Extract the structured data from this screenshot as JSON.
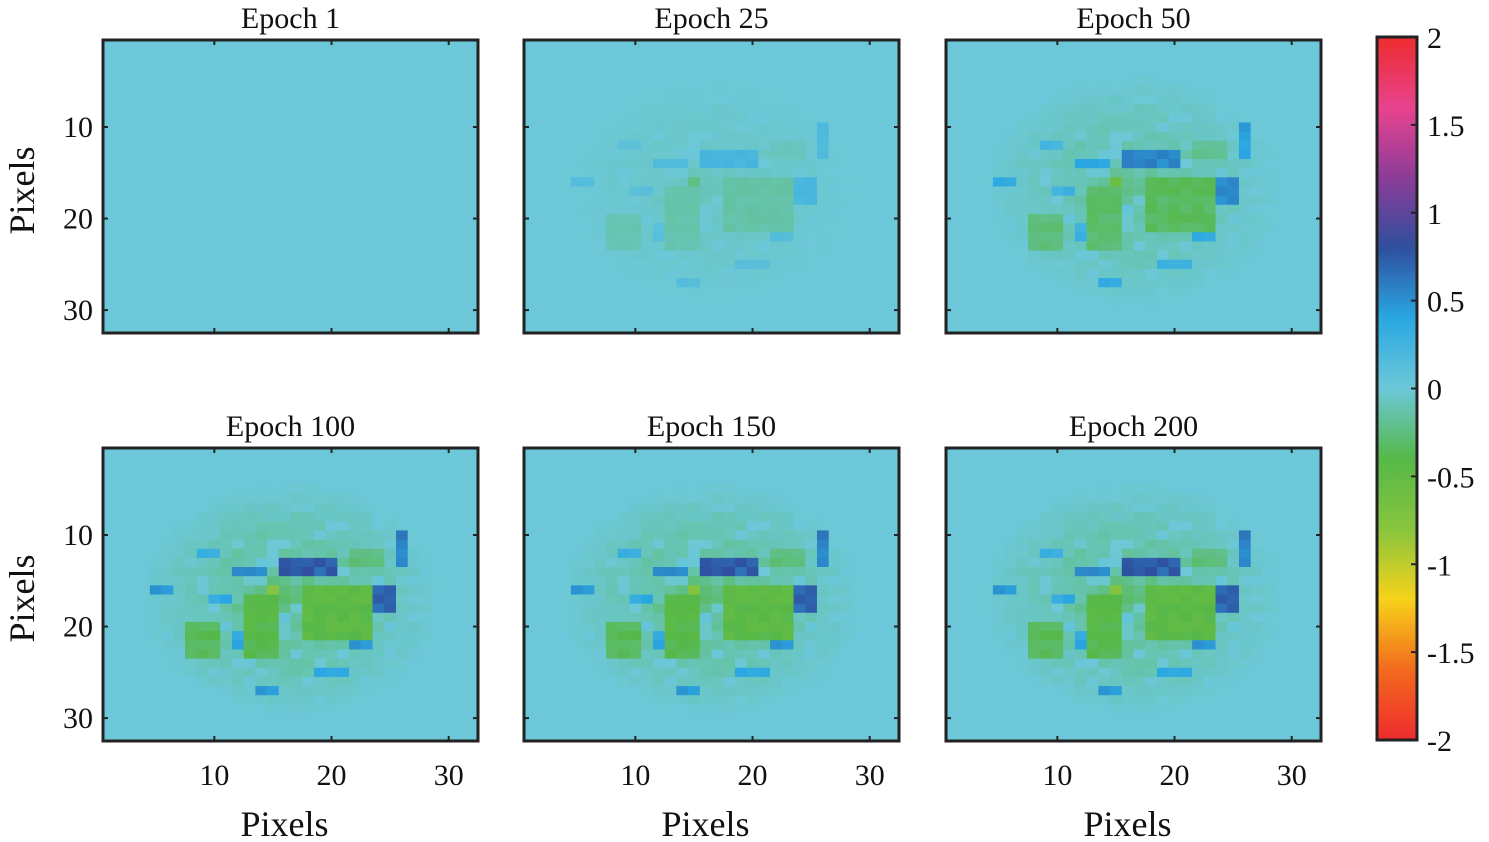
{
  "chart_data": {
    "type": "heatmap",
    "grid_size": 32,
    "xlabel": "Pixels",
    "ylabel": "Pixels",
    "xlim": [
      0.5,
      32.5
    ],
    "ylim": [
      0.5,
      32.5
    ],
    "x_ticks": [
      10,
      20,
      30
    ],
    "y_ticks": [
      10,
      20,
      30
    ],
    "colorbar": {
      "min": -2,
      "max": 2,
      "ticks": [
        "2",
        "1.5",
        "1",
        "0.5",
        "0",
        "-0.5",
        "-1",
        "-1.5",
        "-2"
      ],
      "colors": [
        "#ee2b2e",
        "#f26a1d",
        "#f7d21a",
        "#88c53d",
        "#56b848",
        "#6cc8d8",
        "#2aa7e2",
        "#2f4f9e",
        "#8c3c98",
        "#e8438e",
        "#ee2b2e"
      ]
    },
    "panels": [
      {
        "title": "Epoch 1",
        "epoch": 1,
        "strength": 0.0
      },
      {
        "title": "Epoch 25",
        "epoch": 25,
        "strength": 0.3
      },
      {
        "title": "Epoch 50",
        "epoch": 50,
        "strength": 0.75
      },
      {
        "title": "Epoch 100",
        "epoch": 100,
        "strength": 1.0
      },
      {
        "title": "Epoch 150",
        "epoch": 150,
        "strength": 1.0
      },
      {
        "title": "Epoch 200",
        "epoch": 200,
        "strength": 1.0
      }
    ],
    "features": [
      {
        "x": 16,
        "y": 13,
        "w": 5,
        "h": 2,
        "v": 0.75
      },
      {
        "x": 12,
        "y": 14,
        "w": 3,
        "h": 1,
        "v": 0.55
      },
      {
        "x": 26,
        "y": 10,
        "w": 1,
        "h": 4,
        "v": 0.6
      },
      {
        "x": 24,
        "y": 16,
        "w": 2,
        "h": 3,
        "v": 0.7
      },
      {
        "x": 5,
        "y": 16,
        "w": 2,
        "h": 1,
        "v": 0.45
      },
      {
        "x": 10,
        "y": 17,
        "w": 2,
        "h": 1,
        "v": 0.35
      },
      {
        "x": 22,
        "y": 21,
        "w": 2,
        "h": 2,
        "v": 0.5
      },
      {
        "x": 14,
        "y": 27,
        "w": 2,
        "h": 1,
        "v": 0.45
      },
      {
        "x": 12,
        "y": 21,
        "w": 1,
        "h": 2,
        "v": 0.4
      },
      {
        "x": 9,
        "y": 12,
        "w": 2,
        "h": 1,
        "v": 0.3
      },
      {
        "x": 19,
        "y": 25,
        "w": 3,
        "h": 1,
        "v": 0.35
      },
      {
        "x": 18,
        "y": 16,
        "w": 6,
        "h": 6,
        "v": -0.45
      },
      {
        "x": 13,
        "y": 17,
        "w": 3,
        "h": 7,
        "v": -0.4
      },
      {
        "x": 8,
        "y": 20,
        "w": 3,
        "h": 4,
        "v": -0.35
      },
      {
        "x": 15,
        "y": 16,
        "w": 1,
        "h": 1,
        "v": -0.85
      },
      {
        "x": 22,
        "y": 12,
        "w": 3,
        "h": 2,
        "v": -0.25
      }
    ]
  }
}
